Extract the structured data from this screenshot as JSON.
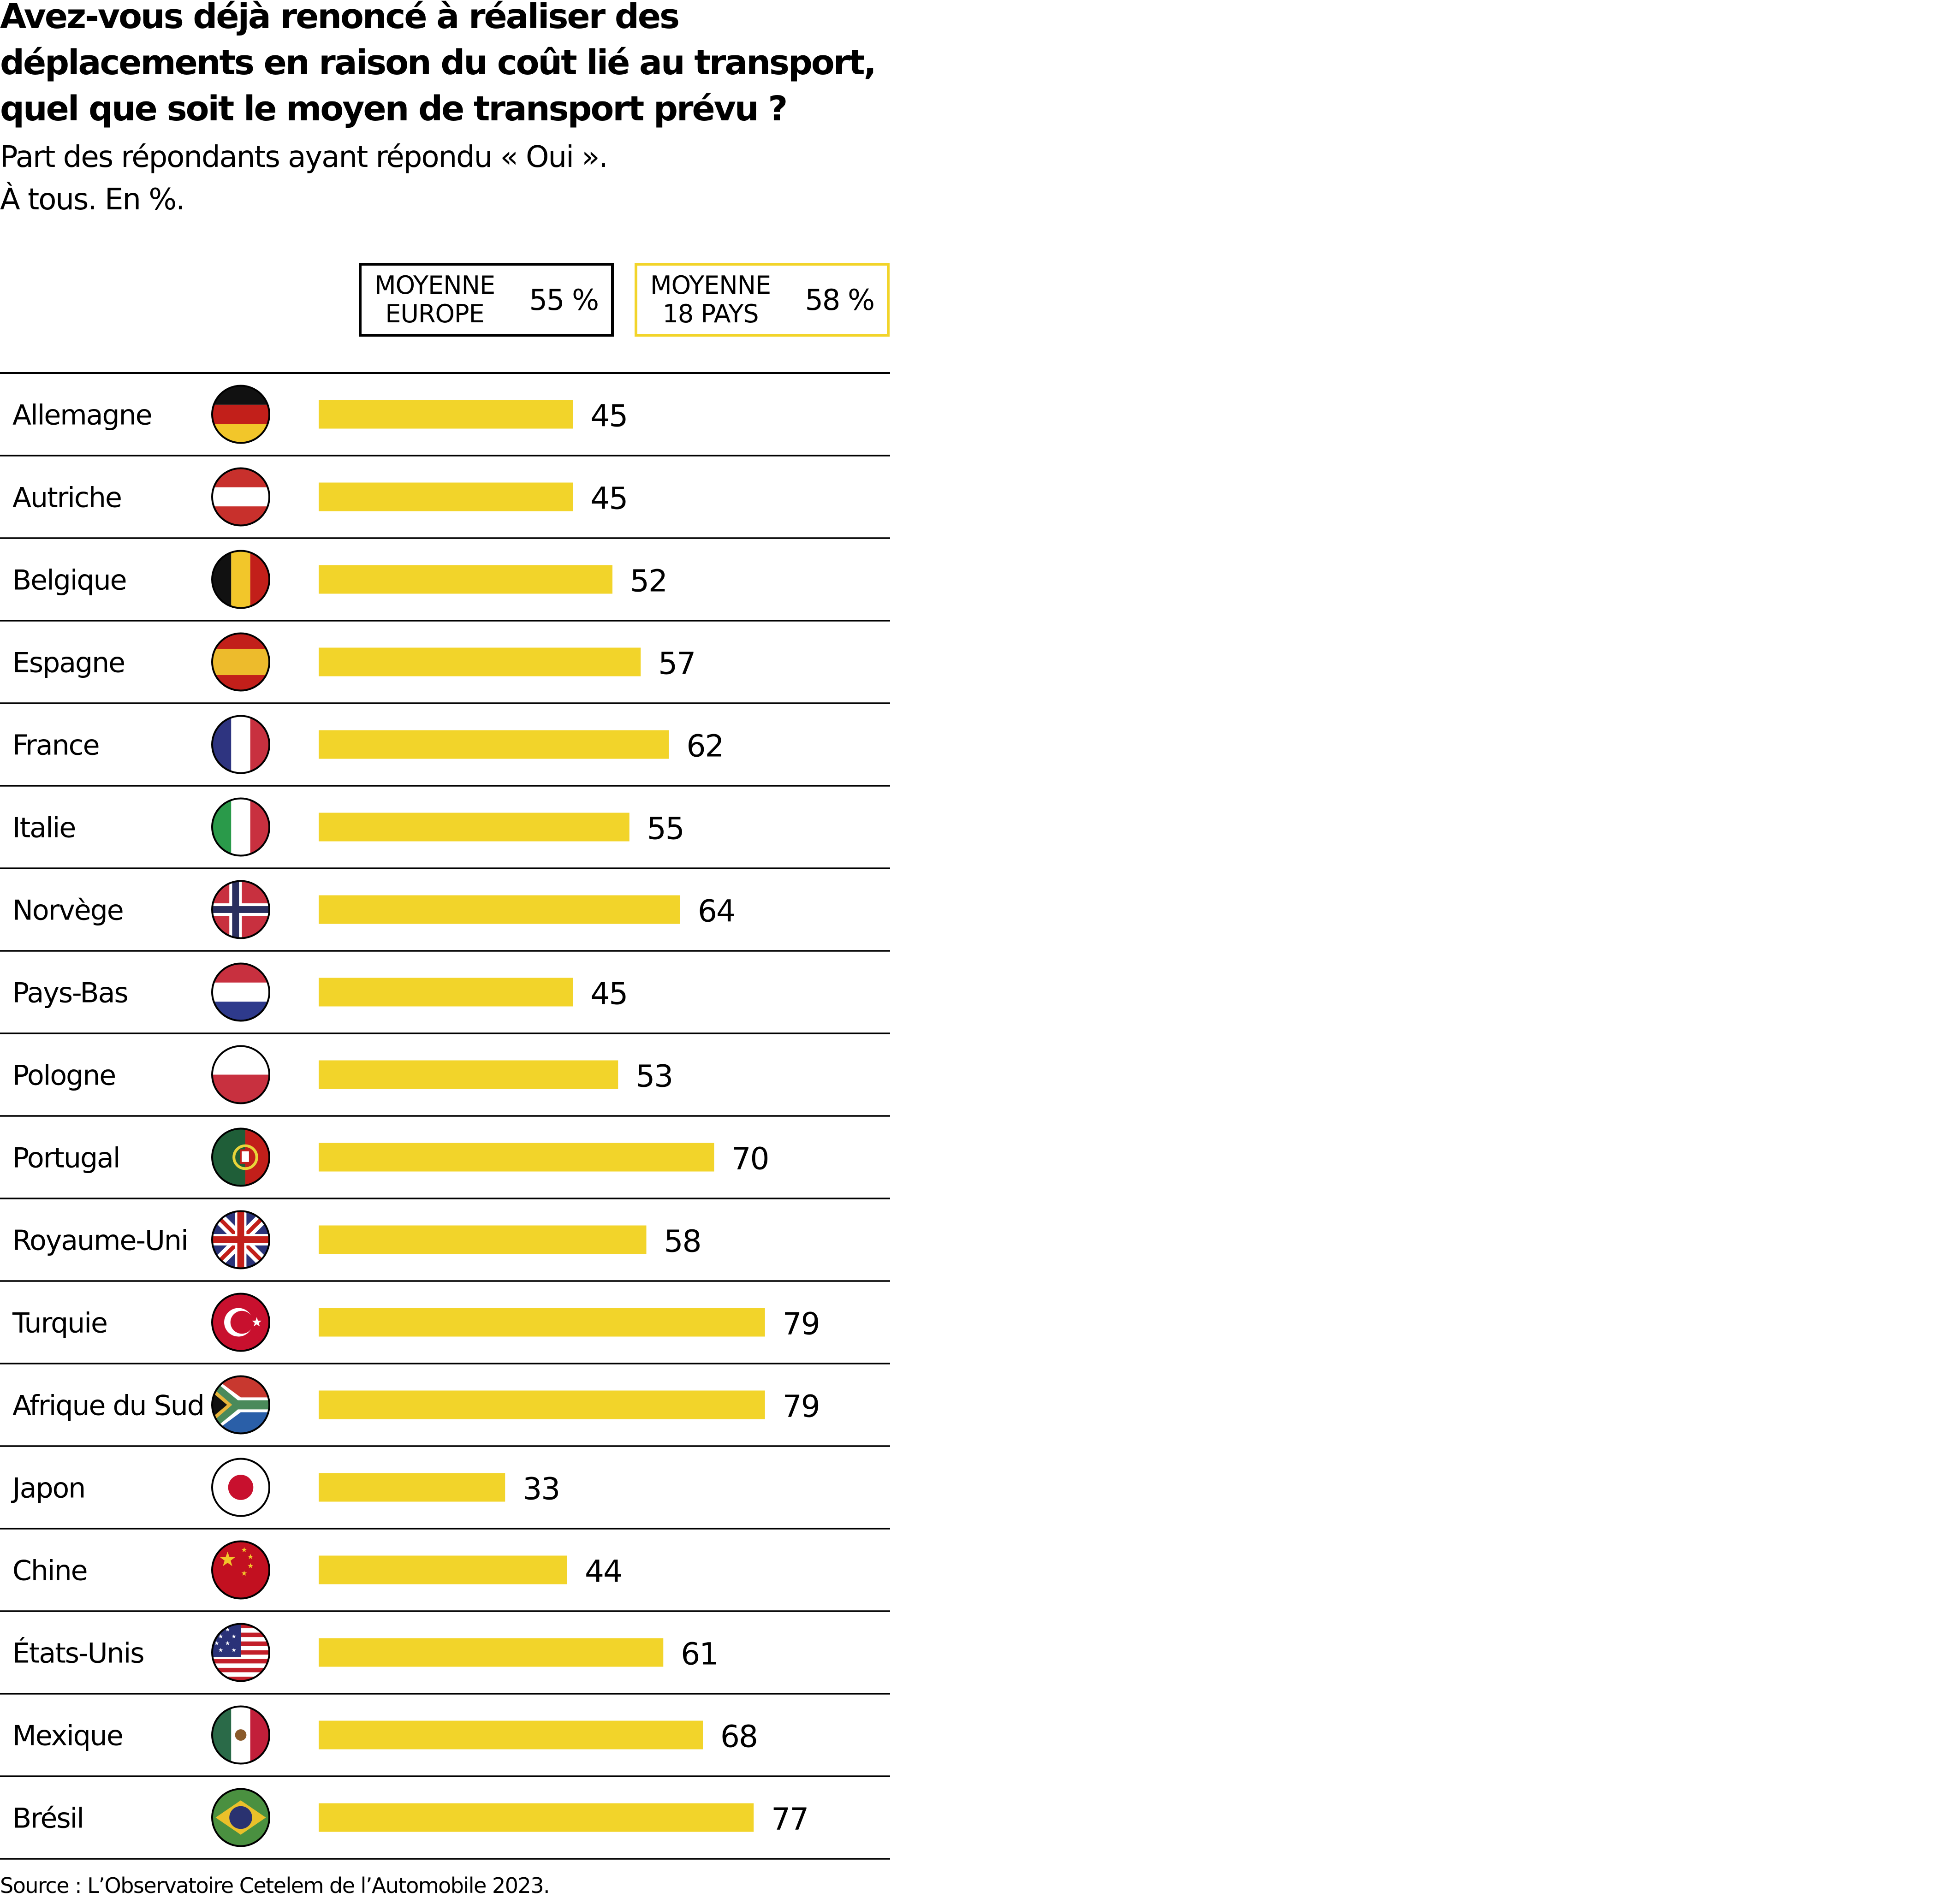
{
  "chart_data": {
    "type": "bar",
    "orientation": "horizontal",
    "title": "Avez-vous déjà renoncé à réaliser des déplacements en raison du coût lié au transport, quel que soit le moyen de transport prévu ?",
    "title_lines": [
      "Avez-vous déjà renoncé à réaliser des",
      "déplacements en raison du coût lié au transport,",
      "quel que soit le moyen de transport prévu ?"
    ],
    "subtitle_lines": [
      "Part des répondants ayant répondu « Oui ».",
      "À tous. En %."
    ],
    "xlabel": "",
    "ylabel": "",
    "xlim": [
      0,
      100
    ],
    "grid": false,
    "categories": [
      "Allemagne",
      "Autriche",
      "Belgique",
      "Espagne",
      "France",
      "Italie",
      "Norvège",
      "Pays-Bas",
      "Pologne",
      "Portugal",
      "Royaume-Uni",
      "Turquie",
      "Afrique du Sud",
      "Japon",
      "Chine",
      "États-Unis",
      "Mexique",
      "Brésil"
    ],
    "flags": [
      "de-flag-icon",
      "at-flag-icon",
      "be-flag-icon",
      "es-flag-icon",
      "fr-flag-icon",
      "it-flag-icon",
      "no-flag-icon",
      "nl-flag-icon",
      "pl-flag-icon",
      "pt-flag-icon",
      "gb-flag-icon",
      "tr-flag-icon",
      "za-flag-icon",
      "jp-flag-icon",
      "cn-flag-icon",
      "us-flag-icon",
      "mx-flag-icon",
      "br-flag-icon"
    ],
    "values": [
      45,
      45,
      52,
      57,
      62,
      55,
      64,
      45,
      53,
      70,
      58,
      79,
      79,
      33,
      44,
      61,
      68,
      77
    ],
    "bar_color": "#F2D42A",
    "references": [
      {
        "label_lines": [
          "MOYENNE",
          "EUROPE"
        ],
        "value_text": "55 %",
        "value": 55,
        "border_color": "#000000"
      },
      {
        "label_lines": [
          "MOYENNE",
          "18 PAYS"
        ],
        "value_text": "58 %",
        "value": 58,
        "border_color": "#F2D42A"
      }
    ],
    "source": "Source : L’Observatoire Cetelem de l’Automobile 2023."
  }
}
